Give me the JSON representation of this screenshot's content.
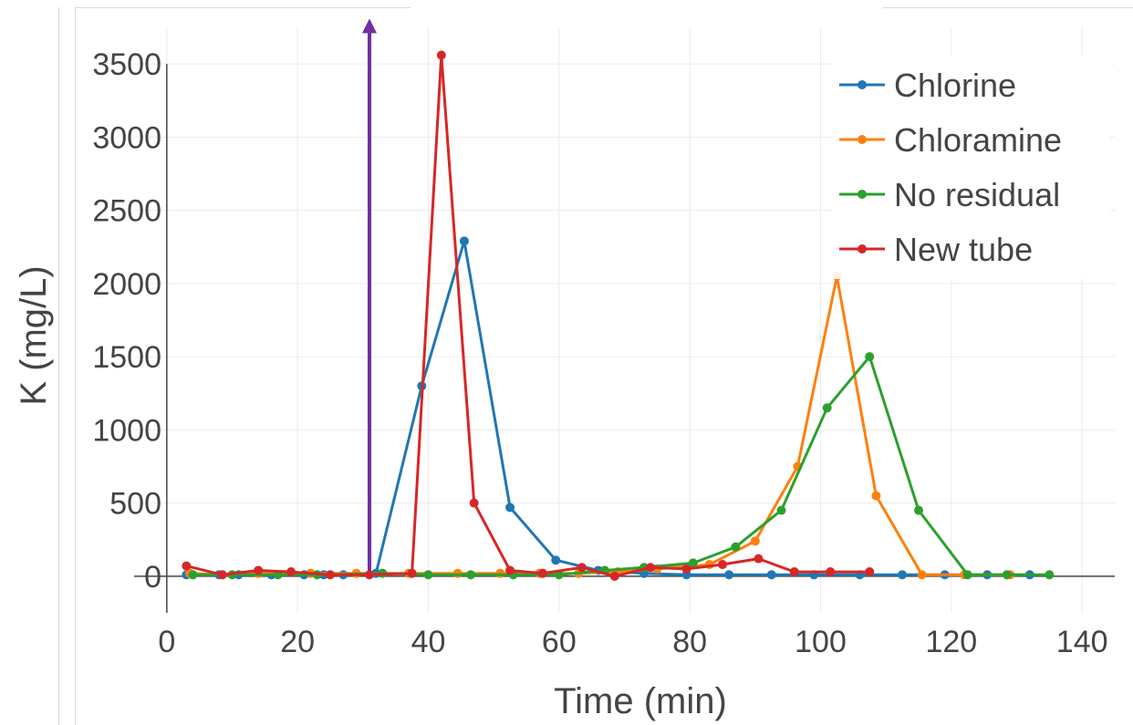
{
  "chart_data": {
    "type": "line",
    "title": "",
    "xlabel": "Time (min)",
    "ylabel": "K (mg/L)",
    "xlim": [
      -5,
      145
    ],
    "ylim": [
      -250,
      3750
    ],
    "xticks": [
      0,
      20,
      40,
      60,
      80,
      100,
      120,
      140
    ],
    "yticks": [
      0,
      500,
      1000,
      1500,
      2000,
      2500,
      3000,
      3500
    ],
    "grid": true,
    "legend_position": "top-right",
    "annotation": {
      "type": "vertical-arrow",
      "x": 31,
      "y_start": 0,
      "y_end": 3810,
      "color": "#7030a0"
    },
    "series": [
      {
        "name": "Chlorine",
        "color": "#1f77b4",
        "x": [
          3,
          8,
          11,
          16,
          21,
          24,
          27,
          32,
          39,
          45.5,
          52.5,
          59.5,
          66,
          73,
          79.5,
          86,
          92.5,
          99,
          106,
          112.5,
          119,
          125.5,
          132
        ],
        "y": [
          10,
          10,
          10,
          10,
          10,
          10,
          10,
          20,
          1300,
          2290,
          470,
          110,
          40,
          20,
          10,
          10,
          10,
          10,
          10,
          10,
          10,
          10,
          10
        ]
      },
      {
        "name": "Chloramine",
        "color": "#ff7f0e",
        "x": [
          3.5,
          8.5,
          14,
          22,
          29,
          37,
          44.5,
          51,
          57,
          63,
          69,
          75,
          83,
          90,
          96.5,
          102.5,
          108.5,
          115.5,
          122,
          129
        ],
        "y": [
          20,
          10,
          20,
          20,
          20,
          20,
          20,
          20,
          20,
          20,
          30,
          50,
          80,
          240,
          750,
          2050,
          550,
          10,
          10,
          10
        ]
      },
      {
        "name": "No residual",
        "color": "#2ca02c",
        "x": [
          4,
          10,
          17,
          23,
          33,
          40,
          46.5,
          53,
          60,
          67,
          73,
          80.5,
          87,
          94,
          101,
          107.5,
          115,
          122.5,
          128.5,
          135
        ],
        "y": [
          10,
          10,
          10,
          10,
          20,
          10,
          10,
          10,
          10,
          40,
          60,
          90,
          200,
          450,
          1150,
          1500,
          450,
          10,
          10,
          10
        ]
      },
      {
        "name": "New tube",
        "color": "#d62728",
        "x": [
          3,
          8.5,
          14,
          19,
          25,
          31,
          37.5,
          42,
          47,
          52.5,
          57.5,
          63.5,
          68.5,
          74,
          79.5,
          85,
          90.5,
          96,
          101.5,
          107.5
        ],
        "y": [
          70,
          10,
          40,
          30,
          10,
          10,
          20,
          3560,
          500,
          40,
          20,
          60,
          0,
          60,
          50,
          80,
          120,
          30,
          30,
          30
        ]
      }
    ]
  }
}
